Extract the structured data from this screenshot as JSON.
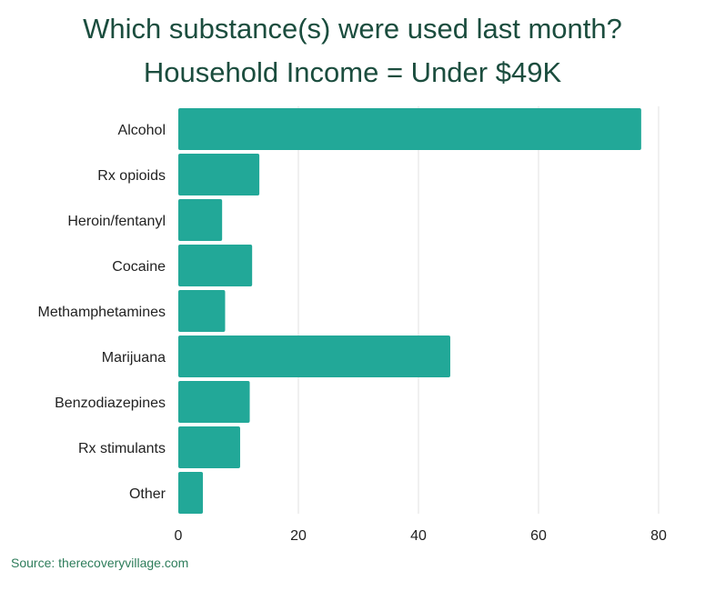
{
  "chart_data": {
    "type": "bar",
    "orientation": "horizontal",
    "title": "Which substance(s) were used last month?",
    "subtitle": "Household Income = Under $49K",
    "categories": [
      "Alcohol",
      "Rx opioids",
      "Heroin/fentanyl",
      "Cocaine",
      "Methamphetamines",
      "Marijuana",
      "Benzodiazepines",
      "Rx stimulants",
      "Other"
    ],
    "values": [
      77.1,
      13.5,
      7.3,
      12.3,
      7.8,
      45.3,
      11.9,
      10.3,
      4.1
    ],
    "xlabel": "",
    "ylabel": "",
    "xlim": [
      0,
      80
    ],
    "xticks": [
      "0",
      "20",
      "40",
      "60",
      "80"
    ],
    "grid": true,
    "bar_color": "#22a898"
  },
  "source": "Source: therecoveryvillage.com"
}
